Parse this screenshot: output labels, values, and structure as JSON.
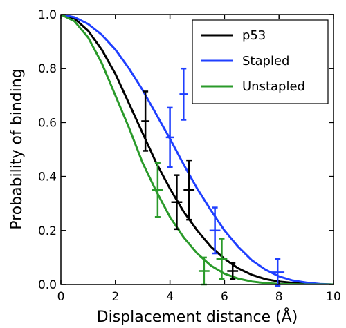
{
  "chart_data": {
    "type": "line",
    "title": "",
    "xlabel": "Displacement distance (Å)",
    "ylabel": "Probability of binding",
    "xlim": [
      0,
      10
    ],
    "ylim": [
      0,
      1.0
    ],
    "x_ticks": [
      0,
      2,
      4,
      6,
      8,
      10
    ],
    "y_ticks": [
      0.0,
      0.2,
      0.4,
      0.6,
      0.8,
      1.0
    ],
    "x_tick_labels": [
      "0",
      "2",
      "4",
      "6",
      "8",
      "10"
    ],
    "y_tick_labels": [
      "0.0",
      "0.2",
      "0.4",
      "0.6",
      "0.8",
      "1.0"
    ],
    "grid": false,
    "legend_position": "top-right",
    "series": [
      {
        "name": "p53",
        "color": "#000000",
        "curve": {
          "x": [
            0,
            0.5,
            1,
            1.5,
            2,
            2.5,
            3,
            3.5,
            4,
            4.5,
            5,
            5.5,
            6,
            6.5,
            7,
            7.5,
            8,
            8.5,
            9,
            9.5,
            10
          ],
          "y": [
            1.0,
            0.985,
            0.94,
            0.87,
            0.78,
            0.67,
            0.56,
            0.45,
            0.355,
            0.27,
            0.2,
            0.14,
            0.095,
            0.06,
            0.036,
            0.02,
            0.011,
            0.006,
            0.003,
            0.001,
            0.0
          ]
        },
        "points": [
          {
            "x": 3.1,
            "y": 0.605,
            "xerr": 0.15,
            "yerr": 0.11
          },
          {
            "x": 4.25,
            "y": 0.305,
            "xerr": 0.2,
            "yerr": 0.1
          },
          {
            "x": 4.7,
            "y": 0.35,
            "xerr": 0.2,
            "yerr": 0.11
          },
          {
            "x": 6.3,
            "y": 0.05,
            "xerr": 0.2,
            "yerr": 0.03
          }
        ]
      },
      {
        "name": "Stapled",
        "color": "#1f3fff",
        "curve": {
          "x": [
            0,
            0.5,
            1,
            1.5,
            2,
            2.5,
            3,
            3.5,
            4,
            4.5,
            5,
            5.5,
            6,
            6.5,
            7,
            7.5,
            8,
            8.5,
            9,
            9.5,
            10
          ],
          "y": [
            1.0,
            0.99,
            0.965,
            0.925,
            0.87,
            0.8,
            0.72,
            0.63,
            0.54,
            0.445,
            0.355,
            0.275,
            0.2,
            0.14,
            0.09,
            0.055,
            0.03,
            0.015,
            0.007,
            0.002,
            0.0
          ]
        },
        "points": [
          {
            "x": 4.0,
            "y": 0.545,
            "xerr": 0.15,
            "yerr": 0.11
          },
          {
            "x": 4.5,
            "y": 0.705,
            "xerr": 0.15,
            "yerr": 0.095
          },
          {
            "x": 5.65,
            "y": 0.2,
            "xerr": 0.2,
            "yerr": 0.085
          },
          {
            "x": 7.95,
            "y": 0.045,
            "xerr": 0.25,
            "yerr": 0.05
          }
        ]
      },
      {
        "name": "Unstapled",
        "color": "#2a9a2a",
        "curve": {
          "x": [
            0,
            0.5,
            1,
            1.5,
            2,
            2.5,
            3,
            3.5,
            4,
            4.5,
            5,
            5.5,
            6,
            6.5,
            7,
            7.5,
            8,
            8.5,
            9,
            9.5,
            10
          ],
          "y": [
            1.0,
            0.975,
            0.915,
            0.82,
            0.7,
            0.58,
            0.45,
            0.345,
            0.25,
            0.175,
            0.115,
            0.07,
            0.04,
            0.022,
            0.011,
            0.005,
            0.002,
            0.001,
            0.0,
            0.0,
            0.0
          ]
        },
        "points": [
          {
            "x": 3.55,
            "y": 0.35,
            "xerr": 0.2,
            "yerr": 0.1
          },
          {
            "x": 5.25,
            "y": 0.05,
            "xerr": 0.2,
            "yerr": 0.05
          },
          {
            "x": 5.9,
            "y": 0.095,
            "xerr": 0.2,
            "yerr": 0.075
          }
        ]
      }
    ]
  }
}
